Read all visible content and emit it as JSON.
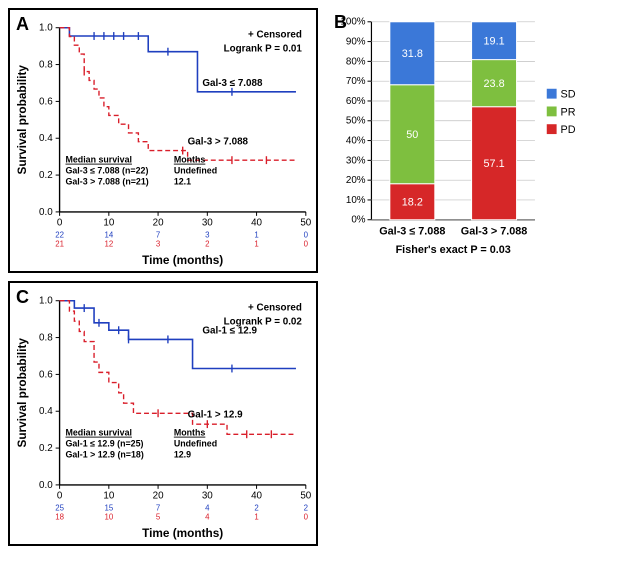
{
  "panels": {
    "A": {
      "label": "A"
    },
    "B": {
      "label": "B"
    },
    "C": {
      "label": "C"
    }
  },
  "km": {
    "ylim": [
      0,
      1.0
    ],
    "yticks": [
      0,
      0.2,
      0.4,
      0.6,
      0.8,
      1.0
    ],
    "xlim": [
      0,
      50
    ],
    "xticks": [
      0,
      10,
      20,
      30,
      40,
      50
    ],
    "ylabel": "Survival probability",
    "xlabel": "Time (months)",
    "censored_anno": "+ Censored",
    "colors": {
      "group1": "#1f3fbf",
      "group2": "#d91e2a",
      "axis": "#000000"
    },
    "A": {
      "logrank": "Logrank  P = 0.01",
      "curve1_label": "Gal-3 ≤ 7.088",
      "curve2_label": "Gal-3 > 7.088",
      "median_header1": "Median survival",
      "median_header2": "Months",
      "median_row1a": "Gal-3 ≤ 7.088 (n=22)",
      "median_row1b": "Undefined",
      "median_row2a": "Gal-3 > 7.088 (n=21)",
      "median_row2b": "12.1",
      "risk1": [
        "22",
        "14",
        "7",
        "3",
        "1",
        "0"
      ],
      "risk2": [
        "21",
        "12",
        "3",
        "2",
        "1",
        "0"
      ],
      "curve1": [
        [
          0,
          1.0
        ],
        [
          1,
          1.0
        ],
        [
          2,
          0.955
        ],
        [
          4,
          0.955
        ],
        [
          7,
          0.955
        ],
        [
          8,
          0.955
        ],
        [
          9,
          0.955
        ],
        [
          11,
          0.955
        ],
        [
          13,
          0.955
        ],
        [
          14,
          0.955
        ],
        [
          16,
          0.955
        ],
        [
          17,
          0.955
        ],
        [
          18,
          0.87
        ],
        [
          22,
          0.87
        ],
        [
          23,
          0.87
        ],
        [
          27,
          0.87
        ],
        [
          28,
          0.652
        ],
        [
          30,
          0.652
        ],
        [
          35,
          0.652
        ],
        [
          40,
          0.652
        ],
        [
          45,
          0.652
        ],
        [
          48,
          0.652
        ]
      ],
      "censor1": [
        [
          7,
          0.955
        ],
        [
          9,
          0.955
        ],
        [
          11,
          0.955
        ],
        [
          13,
          0.955
        ],
        [
          16,
          0.955
        ],
        [
          22,
          0.87
        ],
        [
          35,
          0.652
        ]
      ],
      "curve2": [
        [
          0,
          1.0
        ],
        [
          1,
          1.0
        ],
        [
          2,
          0.952
        ],
        [
          3,
          0.905
        ],
        [
          4,
          0.857
        ],
        [
          5,
          0.762
        ],
        [
          6,
          0.714
        ],
        [
          7,
          0.667
        ],
        [
          8,
          0.619
        ],
        [
          9,
          0.571
        ],
        [
          10,
          0.524
        ],
        [
          12,
          0.476
        ],
        [
          14,
          0.429
        ],
        [
          16,
          0.381
        ],
        [
          18,
          0.333
        ],
        [
          25,
          0.333
        ],
        [
          26,
          0.281
        ],
        [
          33,
          0.281
        ],
        [
          35,
          0.281
        ],
        [
          42,
          0.281
        ],
        [
          48,
          0.281
        ]
      ],
      "censor2": [
        [
          5,
          0.762
        ],
        [
          25,
          0.333
        ],
        [
          35,
          0.281
        ],
        [
          42,
          0.281
        ]
      ]
    },
    "C": {
      "logrank": "Logrank  P = 0.02",
      "curve1_label": "Gal-1 ≤ 12.9",
      "curve2_label": "Gal-1 > 12.9",
      "median_header1": "Median survival",
      "median_header2": "Months",
      "median_row1a": "Gal-1 ≤ 12.9 (n=25)",
      "median_row1b": "Undefined",
      "median_row2a": "Gal-1 > 12.9 (n=18)",
      "median_row2b": "12.9",
      "risk1": [
        "25",
        "15",
        "7",
        "4",
        "2",
        "2"
      ],
      "risk2": [
        "18",
        "10",
        "5",
        "4",
        "1",
        "0"
      ],
      "curve1": [
        [
          0,
          1.0
        ],
        [
          2,
          1.0
        ],
        [
          3,
          0.96
        ],
        [
          4,
          0.96
        ],
        [
          5,
          0.96
        ],
        [
          7,
          0.88
        ],
        [
          8,
          0.88
        ],
        [
          10,
          0.84
        ],
        [
          12,
          0.84
        ],
        [
          14,
          0.79
        ],
        [
          16,
          0.79
        ],
        [
          18,
          0.79
        ],
        [
          22,
          0.79
        ],
        [
          24,
          0.79
        ],
        [
          27,
          0.632
        ],
        [
          30,
          0.632
        ],
        [
          35,
          0.632
        ],
        [
          40,
          0.632
        ],
        [
          48,
          0.632
        ]
      ],
      "censor1": [
        [
          5,
          0.96
        ],
        [
          8,
          0.88
        ],
        [
          12,
          0.84
        ],
        [
          14,
          0.79
        ],
        [
          22,
          0.79
        ],
        [
          35,
          0.632
        ]
      ],
      "curve2": [
        [
          0,
          1.0
        ],
        [
          2,
          0.944
        ],
        [
          3,
          0.889
        ],
        [
          4,
          0.833
        ],
        [
          5,
          0.778
        ],
        [
          7,
          0.667
        ],
        [
          8,
          0.611
        ],
        [
          10,
          0.556
        ],
        [
          12,
          0.5
        ],
        [
          13,
          0.444
        ],
        [
          15,
          0.389
        ],
        [
          20,
          0.389
        ],
        [
          25,
          0.389
        ],
        [
          27,
          0.33
        ],
        [
          30,
          0.33
        ],
        [
          34,
          0.275
        ],
        [
          38,
          0.275
        ],
        [
          43,
          0.275
        ],
        [
          48,
          0.275
        ]
      ],
      "censor2": [
        [
          20,
          0.389
        ],
        [
          30,
          0.33
        ],
        [
          38,
          0.275
        ],
        [
          43,
          0.275
        ]
      ]
    }
  },
  "stacked": {
    "ylabel_pct": true,
    "yticks": [
      0,
      10,
      20,
      30,
      40,
      50,
      60,
      70,
      80,
      90,
      100
    ],
    "categories": [
      "Gal-3 ≤ 7.088",
      "Gal-3 > 7.088"
    ],
    "series": [
      "PD",
      "PR",
      "SD"
    ],
    "colors": {
      "SD": "#3b78d8",
      "PR": "#7ebf3f",
      "PD": "#d62728"
    },
    "data": {
      "Gal-3 ≤ 7.088": {
        "PD": 18.2,
        "PR": 50,
        "SD": 31.8
      },
      "Gal-3 > 7.088": {
        "PD": 57.1,
        "PR": 23.8,
        "SD": 19.1
      }
    },
    "labels": {
      "Gal-3 ≤ 7.088": {
        "PD": "18.2",
        "PR": "50",
        "SD": "31.8"
      },
      "Gal-3 > 7.088": {
        "PD": "57.1",
        "PR": "23.8",
        "SD": "19.1"
      }
    },
    "legend": [
      "SD",
      "PR",
      "PD"
    ],
    "fisher": "Fisher's exact P = 0.03",
    "grid_color": "#bfbfbf",
    "bar_width": 0.55
  }
}
